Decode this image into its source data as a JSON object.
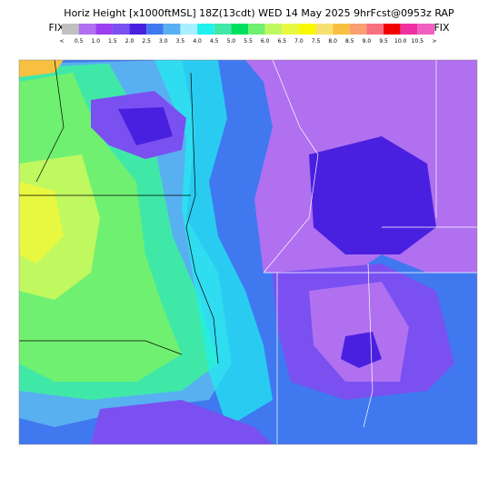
{
  "header": {
    "title": "Horiz Height [x1000ftMSL] 18Z(13cdt) WED 14 May 2025 9hrFcst@0953z RAP",
    "fix_left": "FIX",
    "fix_right": "FIX"
  },
  "legend": {
    "labels": [
      "<",
      "0.5",
      "1.0",
      "1.5",
      "2.0",
      "2.5",
      "3.0",
      "3.5",
      "4.0",
      "4.5",
      "5.0",
      "5.5",
      "6.0",
      "6.5",
      "7.0",
      "7.5",
      "8.0",
      "8.5",
      "9.0",
      "9.5",
      "10.0",
      "10.5",
      ">"
    ],
    "colors": [
      "#c0c0c0",
      "#b070f0",
      "#9a40f0",
      "#7a50f0",
      "#4a20e0",
      "#4078f0",
      "#58b0f0",
      "#a8f0ff",
      "#20f0f0",
      "#40e8a8",
      "#00e060",
      "#70f070",
      "#c0f860",
      "#e8f840",
      "#f8f800",
      "#f8e070",
      "#f8c040",
      "#f8a070",
      "#f87080",
      "#f00000",
      "#f030a0",
      "#f060c0"
    ]
  }
}
